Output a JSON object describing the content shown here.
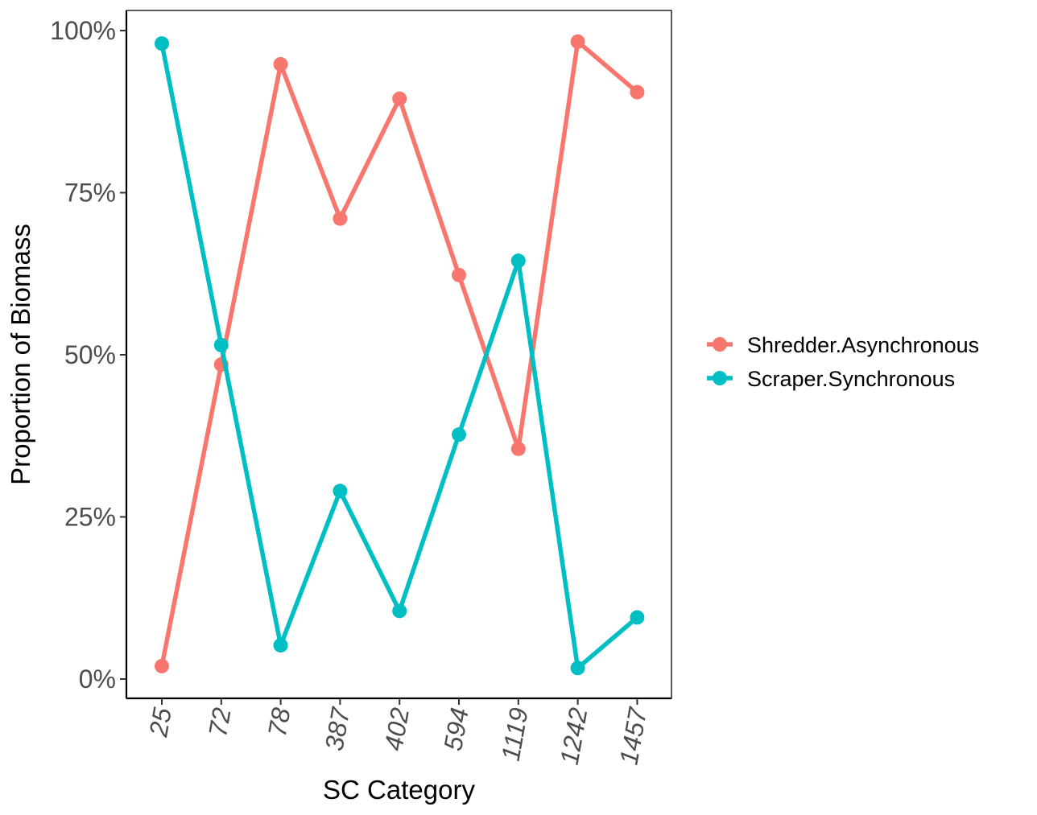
{
  "chart_data": {
    "type": "line",
    "categories": [
      "25",
      "72",
      "78",
      "387",
      "402",
      "594",
      "1119",
      "1242",
      "1457"
    ],
    "series": [
      {
        "name": "Shredder.Asynchronous",
        "color": "#F8766D",
        "values": [
          0.02,
          0.485,
          0.948,
          0.71,
          0.895,
          0.623,
          0.355,
          0.983,
          0.905
        ]
      },
      {
        "name": "Scraper.Synchronous",
        "color": "#00BFC4",
        "values": [
          0.98,
          0.515,
          0.052,
          0.29,
          0.105,
          0.377,
          0.645,
          0.017,
          0.095
        ]
      }
    ],
    "xlabel": "SC Category",
    "ylabel": "Proportion of Biomass",
    "ylim": [
      0,
      1
    ],
    "yticks": [
      "0%",
      "25%",
      "50%",
      "75%",
      "100%"
    ],
    "ytick_values": [
      0,
      0.25,
      0.5,
      0.75,
      1
    ],
    "grid": false,
    "legend_position": "right"
  }
}
